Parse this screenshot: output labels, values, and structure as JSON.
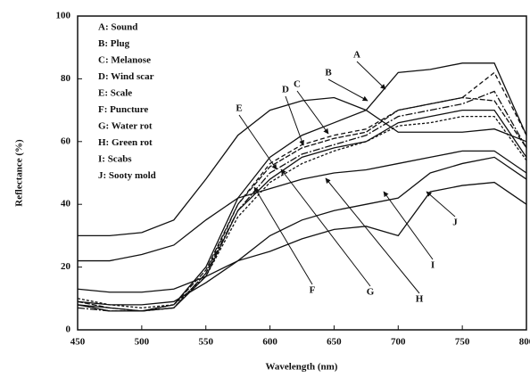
{
  "chart_data": {
    "type": "line",
    "xlabel": "Wavelength (nm)",
    "ylabel": "Reflectance (%)",
    "x": [
      450,
      475,
      500,
      525,
      550,
      575,
      600,
      625,
      650,
      675,
      700,
      725,
      750,
      775,
      800
    ],
    "series": [
      {
        "name": "A: Sound",
        "color": "#111111",
        "dash": "none",
        "values": [
          8,
          6,
          6,
          8,
          20,
          42,
          55,
          62,
          66,
          70,
          82,
          83,
          85,
          85,
          62
        ]
      },
      {
        "name": "B: Plug",
        "color": "#111111",
        "dash": "none",
        "values": [
          30,
          30,
          31,
          35,
          48,
          62,
          70,
          73,
          74,
          70,
          63,
          63,
          63,
          64,
          60
        ]
      },
      {
        "name": "C: Melanose",
        "color": "#111111",
        "dash": "6 2",
        "values": [
          9,
          7,
          6,
          8,
          19,
          40,
          52,
          58,
          61,
          63,
          70,
          72,
          74,
          73,
          58
        ]
      },
      {
        "name": "D: Wind scar",
        "color": "#111111",
        "dash": "5 3",
        "values": [
          8,
          6,
          6,
          7,
          18,
          40,
          53,
          59,
          62,
          64,
          70,
          72,
          74,
          82,
          62
        ]
      },
      {
        "name": "E: Scale",
        "color": "#111111",
        "dash": "8 2 2 2",
        "values": [
          7,
          6,
          6,
          7,
          18,
          38,
          50,
          56,
          59,
          62,
          68,
          70,
          72,
          76,
          58
        ]
      },
      {
        "name": "F: Puncture",
        "color": "#111111",
        "dash": "none",
        "values": [
          8,
          7,
          6,
          7,
          17,
          38,
          48,
          55,
          58,
          60,
          66,
          68,
          70,
          70,
          55
        ]
      },
      {
        "name": "G: Water rot",
        "color": "#111111",
        "dash": "3 2",
        "values": [
          10,
          8,
          7,
          8,
          17,
          36,
          47,
          53,
          57,
          60,
          65,
          66,
          68,
          68,
          54
        ]
      },
      {
        "name": "H: Green rot",
        "color": "#111111",
        "dash": "none",
        "values": [
          22,
          22,
          24,
          27,
          35,
          42,
          45,
          48,
          50,
          51,
          53,
          55,
          57,
          57,
          50
        ]
      },
      {
        "name": "I: Scabs",
        "color": "#111111",
        "dash": "none",
        "values": [
          9,
          8,
          8,
          9,
          15,
          22,
          30,
          35,
          38,
          40,
          42,
          50,
          53,
          55,
          48
        ]
      },
      {
        "name": "J: Sooty mold",
        "color": "#111111",
        "dash": "none",
        "values": [
          13,
          12,
          12,
          13,
          17,
          22,
          25,
          29,
          32,
          33,
          30,
          44,
          46,
          47,
          40
        ]
      }
    ],
    "annotations": [
      "A",
      "B",
      "C",
      "D",
      "E",
      "F",
      "G",
      "H",
      "I",
      "J"
    ],
    "xlim": [
      450,
      800
    ],
    "xticks": [
      450,
      500,
      550,
      600,
      650,
      700,
      750,
      800
    ],
    "ylim": [
      0,
      100
    ],
    "yticks": [
      0,
      20,
      40,
      60,
      80,
      100
    ],
    "grid": false
  }
}
